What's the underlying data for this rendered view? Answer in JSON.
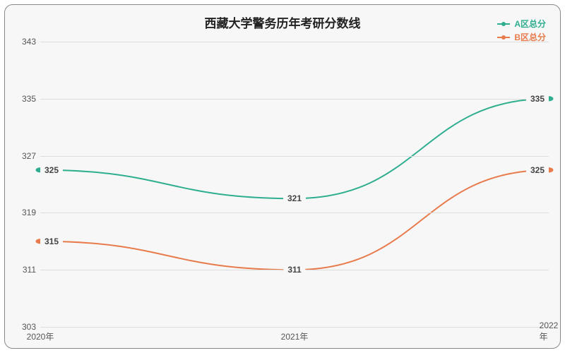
{
  "chart": {
    "type": "line",
    "title": "西藏大学警务历年考研分数线",
    "title_fontsize": 17,
    "background_color": "#f7f7f7",
    "border_color": "#888888",
    "grid_color": "#dddddd",
    "label_color": "#555555",
    "categories": [
      "2020年",
      "2021年",
      "2022年"
    ],
    "ylim": [
      303,
      343
    ],
    "ytick_step": 8,
    "yticks": [
      303,
      311,
      319,
      327,
      335,
      343
    ],
    "series": [
      {
        "name": "A区总分",
        "color": "#2fae8f",
        "values": [
          325,
          321,
          335
        ],
        "line_width": 2,
        "marker": "circle",
        "marker_size": 6
      },
      {
        "name": "B区总分",
        "color": "#e87b4c",
        "values": [
          315,
          311,
          325
        ],
        "line_width": 2,
        "marker": "circle",
        "marker_size": 6
      }
    ],
    "legend_position": "top-right",
    "label_fontsize": 12
  }
}
